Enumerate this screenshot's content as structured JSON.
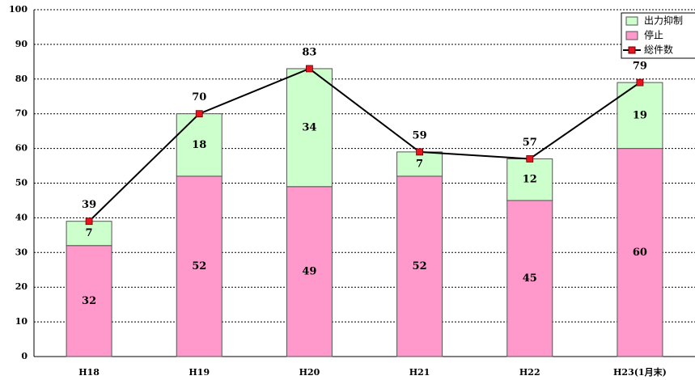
{
  "chart_data": {
    "type": "bar",
    "categories": [
      "H18",
      "H19",
      "H20",
      "H21",
      "H22",
      "H23(1月末)"
    ],
    "series": [
      {
        "name": "停止",
        "type": "bar",
        "color": "#ff99cc",
        "values": [
          32,
          52,
          49,
          52,
          45,
          60
        ]
      },
      {
        "name": "出力抑制",
        "type": "bar",
        "color": "#ccffcc",
        "values": [
          7,
          18,
          34,
          7,
          12,
          19
        ]
      },
      {
        "name": "総件数",
        "type": "line",
        "color": "#000000",
        "marker_color": "#e8141e",
        "values": [
          39,
          70,
          83,
          59,
          57,
          79
        ]
      }
    ],
    "stacked": true,
    "ylim": [
      0,
      100
    ],
    "yticks": [
      0,
      10,
      20,
      30,
      40,
      50,
      60,
      70,
      80,
      90,
      100
    ],
    "grid": true,
    "legend": "top-right"
  }
}
